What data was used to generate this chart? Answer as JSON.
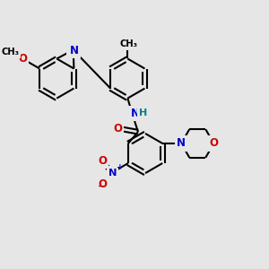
{
  "bg_color": "#e6e6e6",
  "bond_color": "#000000",
  "bond_width": 1.5,
  "atom_colors": {
    "N": "#0000cc",
    "O": "#cc0000",
    "H": "#008080",
    "C": "#000000"
  },
  "fig_size": [
    3.0,
    3.0
  ],
  "dpi": 100
}
